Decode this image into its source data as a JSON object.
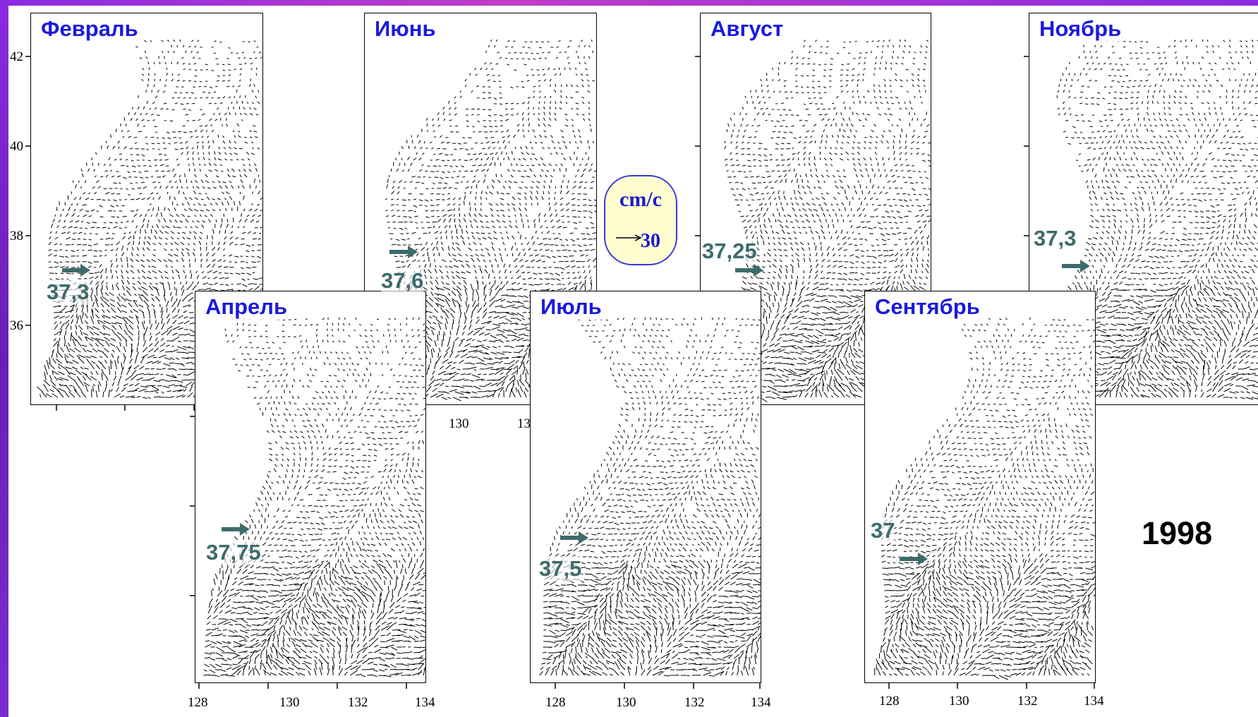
{
  "year": "1998",
  "scale": {
    "unit": "cm/c",
    "value": "30"
  },
  "y_ticks": [
    "42",
    "40",
    "38",
    "36"
  ],
  "x_ticks": [
    "128",
    "130",
    "132",
    "134"
  ],
  "x_ticks_top": [
    "130",
    "13"
  ],
  "colors": {
    "month_label": "#1a1adf",
    "value_label": "#3d6b6b",
    "frame": "#8a2be2",
    "scale_bg": "#fffdd0"
  },
  "panels": [
    {
      "id": "feb",
      "month": "Февраль",
      "value": "37,3"
    },
    {
      "id": "jun",
      "month": "Июнь",
      "value": "37,6"
    },
    {
      "id": "aug",
      "month": "Август",
      "value": "37,25"
    },
    {
      "id": "nov",
      "month": "Ноябрь",
      "value": "37,3"
    },
    {
      "id": "apr",
      "month": "Апрель",
      "value": "37,75"
    },
    {
      "id": "jul",
      "month": "Июль",
      "value": "37,5"
    },
    {
      "id": "sep",
      "month": "Сентябрь",
      "value": "37"
    }
  ]
}
